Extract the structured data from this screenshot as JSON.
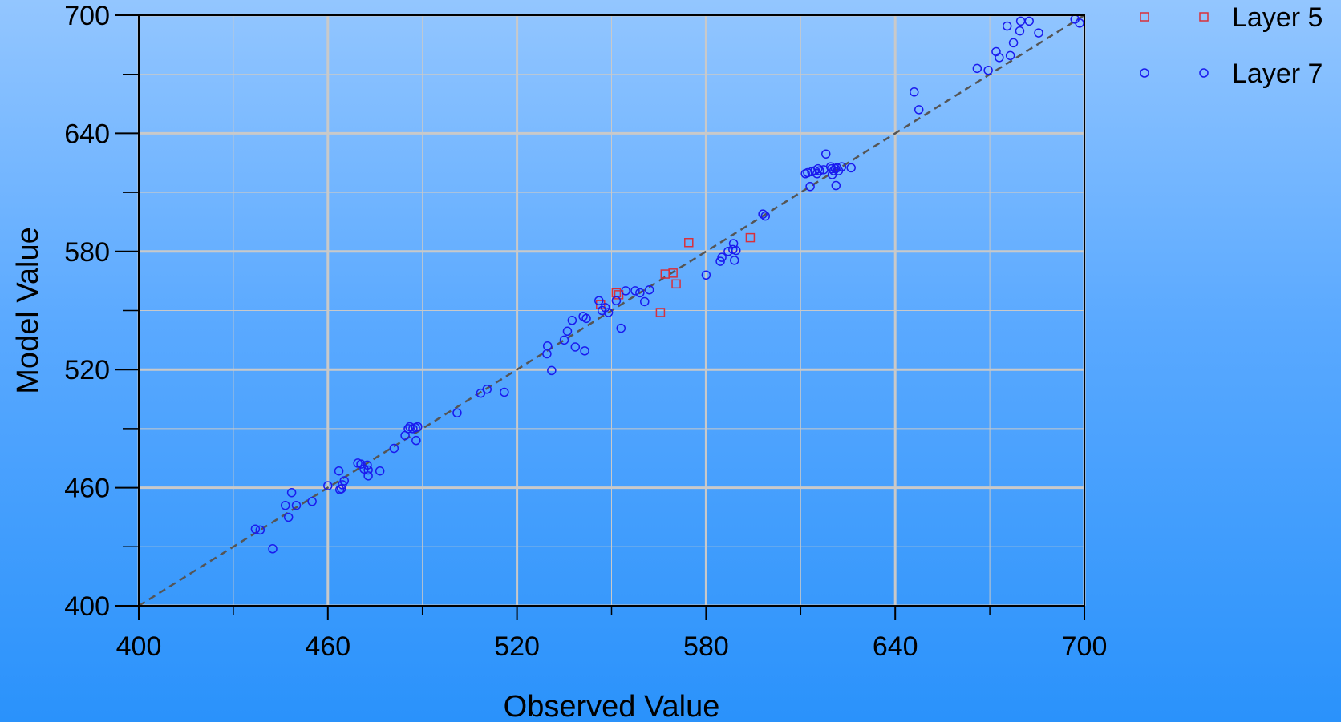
{
  "chart_data": {
    "type": "scatter",
    "title": "",
    "xlabel": "Observed Value",
    "ylabel": "Model Value",
    "xlim": [
      400,
      700
    ],
    "ylim": [
      400,
      700
    ],
    "xticks": [
      400,
      460,
      520,
      580,
      640,
      700
    ],
    "yticks": [
      400,
      460,
      520,
      580,
      640,
      700
    ],
    "xticks_minor": [
      430,
      490,
      550,
      610,
      670
    ],
    "yticks_minor": [
      430,
      490,
      550,
      610,
      670
    ],
    "grid": true,
    "reference_line": {
      "from": [
        400,
        400
      ],
      "to": [
        700,
        700
      ],
      "style": "dashed",
      "color": "#555555"
    },
    "legend": {
      "position": "top-right-outside"
    },
    "series": [
      {
        "name": "Layer 5",
        "marker": "square",
        "color": "#d9303a",
        "points": [
          [
            546.5,
            553
          ],
          [
            551.5,
            559
          ],
          [
            552.3,
            558
          ],
          [
            565.5,
            549
          ],
          [
            567,
            568.5
          ],
          [
            569.5,
            569
          ],
          [
            570.5,
            563.5
          ],
          [
            574.5,
            584.5
          ],
          [
            594,
            587
          ]
        ]
      },
      {
        "name": "Layer 7",
        "marker": "circle",
        "color": "#1a1aee",
        "points": [
          [
            437,
            439
          ],
          [
            438.5,
            438.5
          ],
          [
            442.5,
            429
          ],
          [
            446.5,
            451
          ],
          [
            447.5,
            445
          ],
          [
            448.5,
            457.5
          ],
          [
            450,
            451
          ],
          [
            455,
            453
          ],
          [
            460,
            461
          ],
          [
            463.5,
            468.5
          ],
          [
            463.8,
            459
          ],
          [
            464.3,
            459.5
          ],
          [
            464.6,
            461.5
          ],
          [
            465.2,
            463.5
          ],
          [
            469.5,
            472.5
          ],
          [
            470.5,
            472
          ],
          [
            471.5,
            469.5
          ],
          [
            472.5,
            471.5
          ],
          [
            472.8,
            469
          ],
          [
            472.8,
            466
          ],
          [
            476.5,
            468.5
          ],
          [
            481,
            480
          ],
          [
            484.5,
            486.5
          ],
          [
            485.5,
            490
          ],
          [
            486,
            491
          ],
          [
            487,
            490
          ],
          [
            487.8,
            490.5
          ],
          [
            488,
            484
          ],
          [
            488.5,
            491
          ],
          [
            501,
            498
          ],
          [
            508.5,
            508
          ],
          [
            510.5,
            510
          ],
          [
            516,
            508.5
          ],
          [
            529.5,
            528
          ],
          [
            529.7,
            532
          ],
          [
            531,
            519.5
          ],
          [
            535,
            535
          ],
          [
            536,
            539.5
          ],
          [
            537.5,
            545
          ],
          [
            538.5,
            531.5
          ],
          [
            541,
            547
          ],
          [
            541.5,
            529.5
          ],
          [
            542,
            546
          ],
          [
            546,
            555
          ],
          [
            547,
            550
          ],
          [
            548,
            551.5
          ],
          [
            549,
            549
          ],
          [
            551.5,
            555
          ],
          [
            553,
            541
          ],
          [
            554.5,
            560
          ],
          [
            557.5,
            560
          ],
          [
            559,
            559
          ],
          [
            560.5,
            554.5
          ],
          [
            562,
            560.5
          ],
          [
            580,
            568
          ],
          [
            584.5,
            575
          ],
          [
            585,
            577
          ],
          [
            587,
            580
          ],
          [
            588.5,
            581
          ],
          [
            588.7,
            584
          ],
          [
            589,
            575.5
          ],
          [
            589.5,
            580.5
          ],
          [
            598,
            599
          ],
          [
            598.8,
            598
          ],
          [
            611.5,
            619.5
          ],
          [
            612.2,
            620
          ],
          [
            613,
            613
          ],
          [
            613.5,
            620.5
          ],
          [
            614.5,
            621
          ],
          [
            615.2,
            619.5
          ],
          [
            615.5,
            622
          ],
          [
            616,
            621
          ],
          [
            617.3,
            621.5
          ],
          [
            618,
            629.5
          ],
          [
            619.5,
            623
          ],
          [
            619.8,
            622
          ],
          [
            620,
            619
          ],
          [
            620.5,
            621
          ],
          [
            621,
            622
          ],
          [
            621.2,
            613.5
          ],
          [
            621.5,
            622.5
          ],
          [
            622,
            621
          ],
          [
            623,
            623
          ],
          [
            626,
            622.5
          ],
          [
            646,
            661
          ],
          [
            647.5,
            652
          ],
          [
            666,
            673
          ],
          [
            669.5,
            672
          ],
          [
            672,
            681.5
          ],
          [
            673,
            678.5
          ],
          [
            675.5,
            694.5
          ],
          [
            676.5,
            679.5
          ],
          [
            677.5,
            686
          ],
          [
            679.5,
            692
          ],
          [
            679.8,
            697
          ],
          [
            682.5,
            697
          ],
          [
            685.5,
            691
          ],
          [
            697,
            698
          ],
          [
            698.5,
            696
          ]
        ]
      }
    ]
  }
}
